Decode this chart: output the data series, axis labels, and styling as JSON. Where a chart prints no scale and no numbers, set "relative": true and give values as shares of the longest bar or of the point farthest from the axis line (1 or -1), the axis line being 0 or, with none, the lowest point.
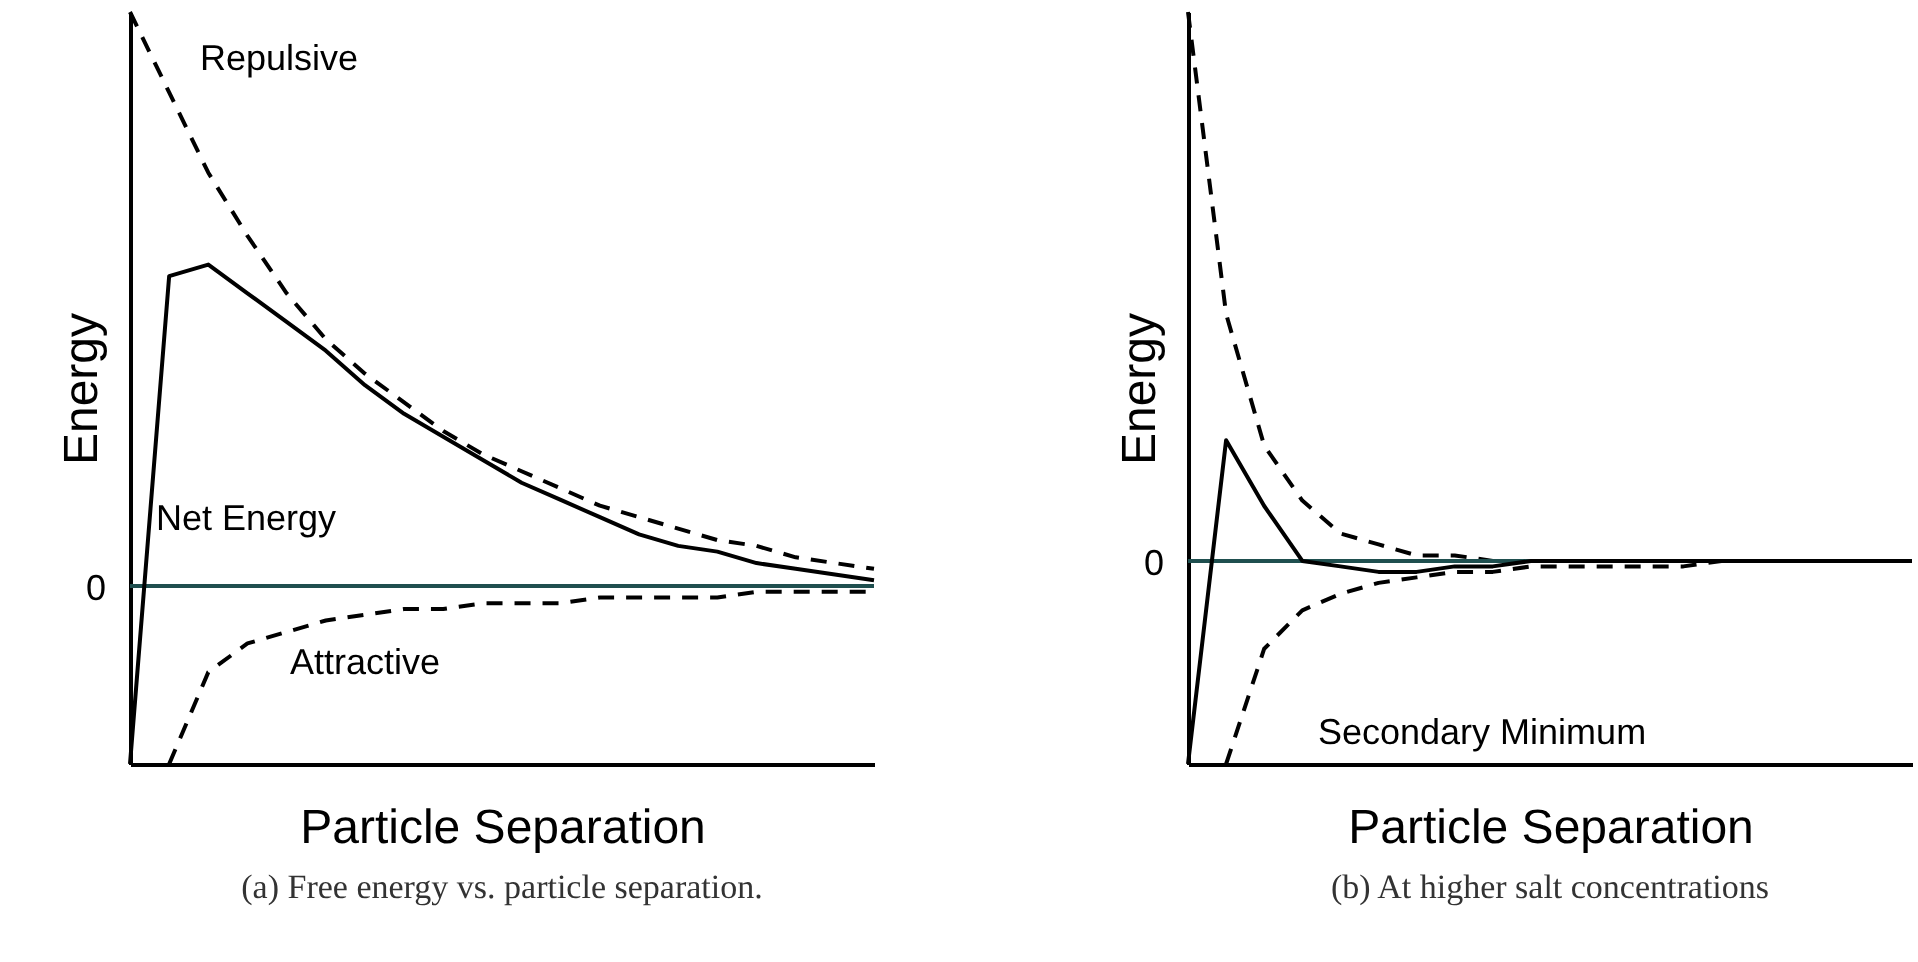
{
  "chart_data": [
    {
      "type": "line",
      "relative": true,
      "xlabel": "Particle Separation",
      "ylabel": "Energy",
      "tick_labels": false,
      "grid": false,
      "legend": false,
      "categories": [
        null,
        null,
        null,
        null,
        null,
        null,
        null,
        null,
        null,
        null,
        null,
        null,
        null,
        null,
        null,
        null,
        null,
        null,
        null,
        null
      ],
      "series": [
        {
          "name": "Repulsive",
          "color": "#000000",
          "line_style": "dashed",
          "values": [
            1.0,
            0.86,
            0.72,
            0.61,
            0.51,
            0.43,
            0.37,
            0.32,
            0.27,
            0.23,
            0.2,
            0.17,
            0.14,
            0.12,
            0.1,
            0.08,
            0.07,
            0.05,
            0.04,
            0.03
          ]
        },
        {
          "name": "Net Energy",
          "color": "#000000",
          "line_style": "solid",
          "values": [
            -0.31,
            0.54,
            0.56,
            0.51,
            0.46,
            0.41,
            0.35,
            0.3,
            0.26,
            0.22,
            0.18,
            0.15,
            0.12,
            0.09,
            0.07,
            0.06,
            0.04,
            0.03,
            0.02,
            0.01
          ]
        },
        {
          "name": "Attractive",
          "color": "#000000",
          "line_style": "dashed",
          "values": [
            null,
            -0.31,
            -0.15,
            -0.1,
            -0.08,
            -0.06,
            -0.05,
            -0.04,
            -0.04,
            -0.03,
            -0.03,
            -0.03,
            -0.02,
            -0.02,
            -0.02,
            -0.02,
            -0.01,
            -0.01,
            -0.01,
            -0.01
          ]
        }
      ],
      "ref_lines": [
        {
          "axis": "y",
          "value": 0,
          "label": "0",
          "color": "#1f4f4f"
        }
      ],
      "annotations": [
        "(a) Free energy vs. particle separation."
      ]
    },
    {
      "type": "line",
      "relative": true,
      "xlabel": "Particle Separation",
      "ylabel": "Energy",
      "tick_labels": false,
      "grid": false,
      "legend": false,
      "categories": [
        null,
        null,
        null,
        null,
        null,
        null,
        null,
        null,
        null,
        null,
        null,
        null,
        null,
        null,
        null,
        null,
        null,
        null,
        null,
        null
      ],
      "series": [
        {
          "color": "#000000",
          "line_style": "dashed",
          "values": [
            1.0,
            0.45,
            0.21,
            0.11,
            0.05,
            0.03,
            0.01,
            0.01,
            0,
            0,
            0,
            0,
            0,
            0,
            0,
            0,
            0,
            0,
            0,
            0
          ]
        },
        {
          "color": "#000000",
          "line_style": "solid",
          "values": [
            -0.37,
            0.22,
            0.1,
            0,
            -0.01,
            -0.02,
            -0.02,
            -0.01,
            -0.01,
            0,
            0,
            0,
            0,
            0,
            0,
            0,
            0,
            0,
            0,
            0
          ]
        },
        {
          "color": "#000000",
          "line_style": "dashed",
          "values": [
            null,
            -0.37,
            -0.16,
            -0.09,
            -0.06,
            -0.04,
            -0.03,
            -0.02,
            -0.02,
            -0.01,
            -0.01,
            -0.01,
            -0.01,
            -0.01,
            0,
            0,
            0,
            0,
            0,
            0
          ]
        }
      ],
      "ref_lines": [
        {
          "axis": "y",
          "value": 0,
          "label": "0",
          "color": "#1f4f4f"
        }
      ],
      "annotations": [
        "Secondary Minimum",
        "(b) At higher salt concentrations"
      ]
    }
  ]
}
